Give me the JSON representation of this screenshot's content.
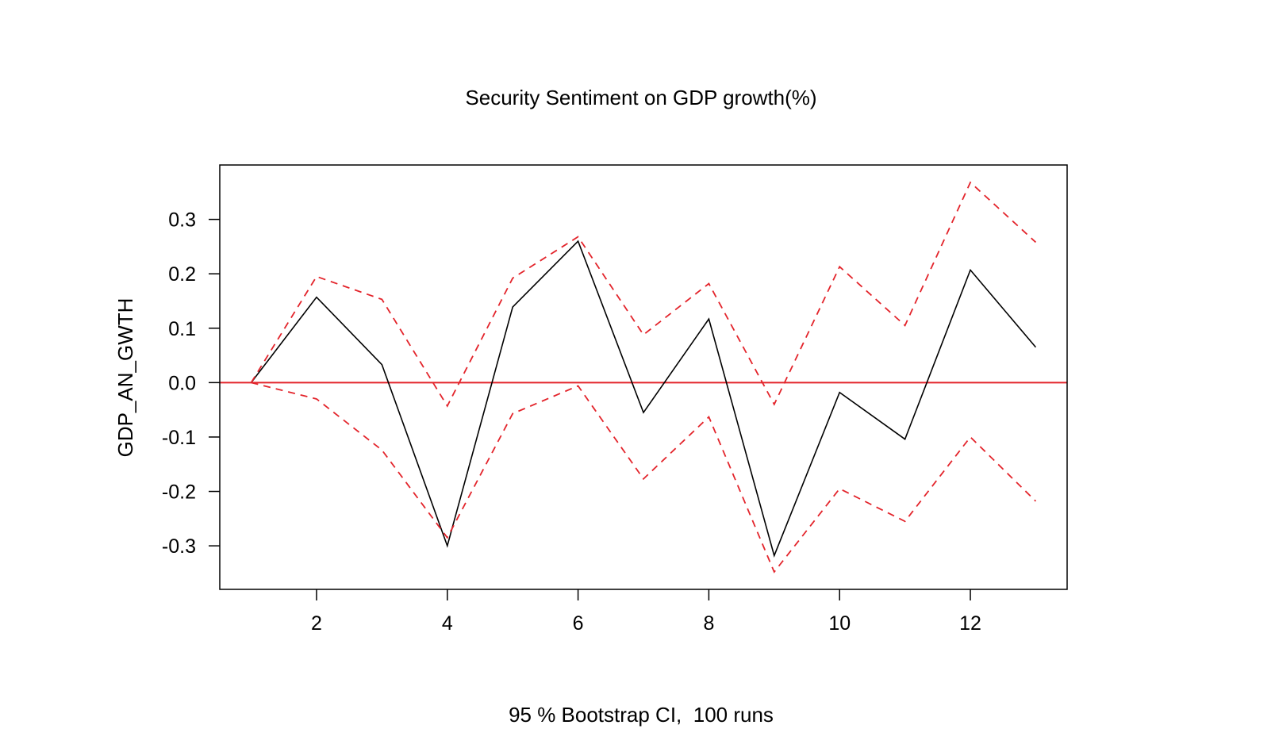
{
  "chart_data": {
    "type": "line",
    "title": "Security Sentiment on GDP growth(%)",
    "xlabel": "95 % Bootstrap CI,  100 runs",
    "ylabel": "GDP_AN_GWTH",
    "x": [
      1,
      2,
      3,
      4,
      5,
      6,
      7,
      8,
      9,
      10,
      11,
      12,
      13
    ],
    "xlim": [
      0.52,
      13.48
    ],
    "ylim": [
      -0.38,
      0.4
    ],
    "xticks": [
      2,
      4,
      6,
      8,
      10,
      12
    ],
    "yticks": [
      -0.3,
      -0.2,
      -0.1,
      0.0,
      0.1,
      0.2,
      0.3
    ],
    "xtick_labels": [
      "2",
      "4",
      "6",
      "8",
      "10",
      "12"
    ],
    "ytick_labels": [
      "-0.3",
      "-0.2",
      "-0.1",
      "0.0",
      "0.1",
      "0.2",
      "0.3"
    ],
    "grid": false,
    "legend": "none",
    "series": [
      {
        "role": "estimate",
        "color": "#000000",
        "dash": "solid",
        "values": [
          0.0,
          0.157,
          0.033,
          -0.3,
          0.139,
          0.26,
          -0.055,
          0.117,
          -0.318,
          -0.018,
          -0.104,
          0.207,
          0.065
        ]
      },
      {
        "role": "upper",
        "color": "#e3242b",
        "dash": "dashed",
        "values": [
          0.0,
          0.195,
          0.153,
          -0.043,
          0.192,
          0.268,
          0.088,
          0.182,
          -0.04,
          0.213,
          0.105,
          0.368,
          0.258
        ]
      },
      {
        "role": "lower",
        "color": "#e3242b",
        "dash": "dashed",
        "values": [
          0.0,
          -0.03,
          -0.124,
          -0.285,
          -0.057,
          -0.006,
          -0.177,
          -0.063,
          -0.348,
          -0.195,
          -0.255,
          -0.1,
          -0.218
        ]
      }
    ],
    "reference_line": {
      "y": 0.0,
      "color": "#e3242b"
    }
  }
}
